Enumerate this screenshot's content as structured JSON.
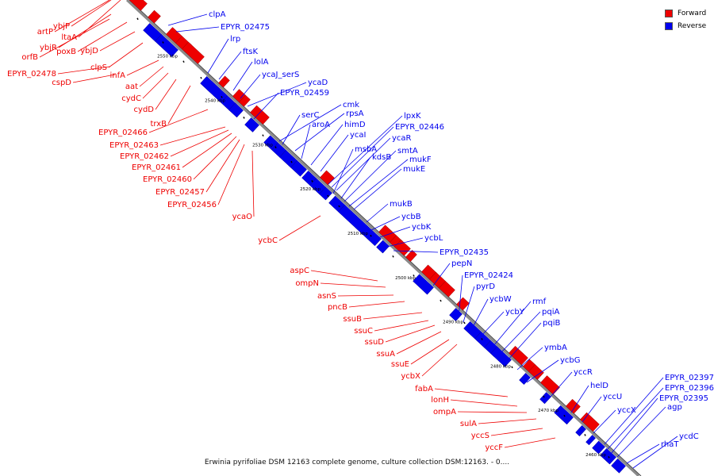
{
  "legend": [
    {
      "label": "Forward",
      "color": "#ee0000"
    },
    {
      "label": "Reverse",
      "color": "#0000ee"
    }
  ],
  "caption": "Erwinia pyrifoliae DSM 12163 complete genome, culture collection DSM:12163. - 0....",
  "colors": {
    "forward": "#ee0000",
    "reverse": "#0000ee",
    "backbone": "#8a8a8a"
  },
  "ticks": [
    "2550 kbp",
    "2540 kbp",
    "2530 kbp",
    "2520 kbp",
    "2510 kbp",
    "2500 kbp",
    "2490 kbp",
    "2480 kbp",
    "2470 kbp",
    "2460 kbp"
  ],
  "reverse_genes": [
    "clpA",
    "EPYR_02475",
    "lrp",
    "ftsK",
    "lolA",
    "ycaJ_serS",
    "ycaD",
    "EPYR_02459",
    "cmk",
    "serC",
    "rpsA",
    "aroA",
    "himD",
    "ycaI",
    "lpxK",
    "EPYR_02446",
    "ycaR",
    "msbA",
    "kdsB",
    "smtA",
    "mukF",
    "mukE",
    "mukB",
    "ycbB",
    "ycbK",
    "ycbL",
    "EPYR_02435",
    "pepN",
    "EPYR_02424",
    "pyrD",
    "ycbW",
    "ycbY",
    "rmf",
    "pqiA",
    "pqiB",
    "ymbA",
    "ycbG",
    "yccR",
    "helD",
    "yccU",
    "yccX",
    "EPYR_02397",
    "EPYR_02396",
    "EPYR_02395",
    "agp",
    "rhaT",
    "ycdC"
  ],
  "forward_genes": [
    "artP",
    "ybjP",
    "ltaA",
    "ybjR",
    "orfB",
    "poxB",
    "ybjD",
    "clpS",
    "EPYR_02478",
    "cspD",
    "infA",
    "aat",
    "cydC",
    "cydD",
    "trxB",
    "EPYR_02466",
    "EPYR_02463",
    "EPYR_02462",
    "EPYR_02461",
    "EPYR_02460",
    "EPYR_02457",
    "EPYR_02456",
    "ycaO",
    "ycbC",
    "aspC",
    "ompN",
    "asnS",
    "pncB",
    "ssuB",
    "ssuC",
    "ssuD",
    "ssuA",
    "ssuE",
    "ycbX",
    "fabA",
    "lonH",
    "ompA",
    "sulA",
    "yccS",
    "yccF"
  ]
}
